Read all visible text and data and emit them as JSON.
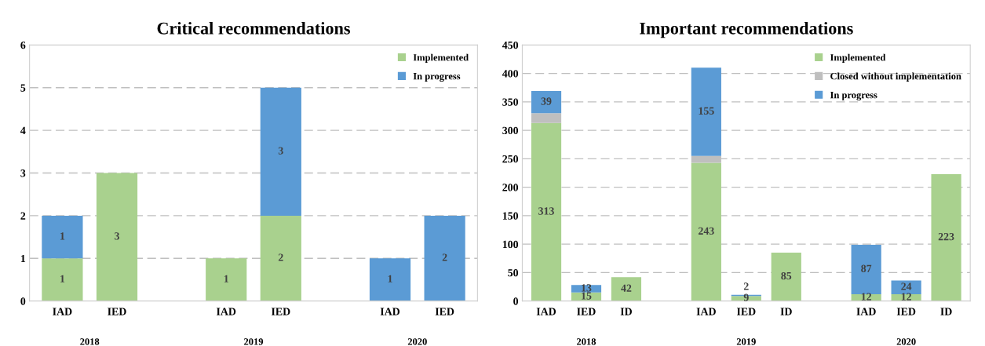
{
  "chart_data": [
    {
      "type": "bar",
      "title": "Critical recommendations",
      "stacked": true,
      "categories": [
        "IAD",
        "IED",
        null,
        "IAD",
        "IED",
        null,
        "IAD",
        "IED"
      ],
      "series": [
        {
          "name": "Implemented",
          "color": "#a9d18e",
          "values": [
            1,
            3,
            null,
            1,
            2,
            null,
            null,
            null
          ],
          "value_labels": [
            "1",
            "3",
            null,
            "1",
            "2",
            null,
            null,
            null
          ]
        },
        {
          "name": "In progress",
          "color": "#5b9bd5",
          "values": [
            1,
            null,
            null,
            null,
            3,
            null,
            1,
            2
          ],
          "value_labels": [
            "1",
            null,
            null,
            null,
            "3",
            null,
            "1",
            "2"
          ]
        }
      ],
      "ylim": [
        0,
        6
      ],
      "yticks": [
        0,
        1,
        2,
        3,
        4,
        5,
        6
      ],
      "grid": "y",
      "legend": "top right",
      "annotations": [
        "2018",
        "2019",
        "2020"
      ]
    },
    {
      "type": "bar",
      "title": "Important recommendations",
      "stacked": true,
      "categories": [
        "IAD",
        "IED",
        "ID",
        null,
        "IAD",
        "IED",
        "ID",
        null,
        "IAD",
        "IED",
        "ID"
      ],
      "series": [
        {
          "name": "Implemented",
          "color": "#a9d18e",
          "values": [
            313,
            15,
            42,
            null,
            243,
            9,
            85,
            null,
            12,
            12,
            223
          ],
          "value_labels": [
            "313",
            "15",
            "42",
            null,
            "243",
            "9",
            "85",
            null,
            "12",
            "12",
            "223"
          ]
        },
        {
          "name": "Closed without implementation",
          "color": "#bfbfbf",
          "values": [
            17,
            null,
            null,
            null,
            12,
            null,
            null,
            null,
            null,
            null,
            null
          ],
          "value_labels": [
            null,
            null,
            null,
            null,
            null,
            null,
            null,
            null,
            null,
            null,
            null
          ]
        },
        {
          "name": "In progress",
          "color": "#5b9bd5",
          "values": [
            39,
            13,
            null,
            null,
            155,
            2,
            null,
            null,
            87,
            24,
            null
          ],
          "value_labels": [
            "39",
            "13",
            null,
            null,
            "155",
            "2",
            null,
            null,
            "87",
            "24",
            null
          ]
        }
      ],
      "ylim": [
        0,
        450
      ],
      "yticks": [
        0,
        50,
        100,
        150,
        200,
        250,
        300,
        350,
        400,
        450
      ],
      "grid": "y",
      "legend": "top right",
      "annotations": [
        "2018",
        "2019",
        "2020"
      ]
    }
  ]
}
